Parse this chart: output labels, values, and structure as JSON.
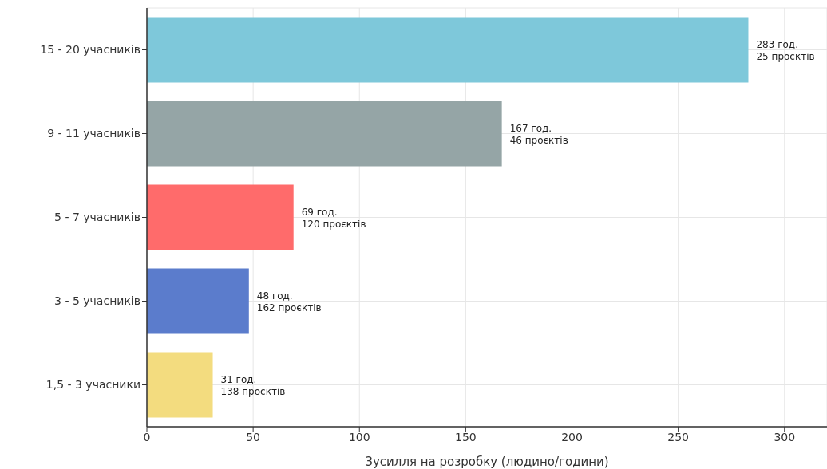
{
  "chart_data": {
    "type": "bar",
    "orientation": "horizontal",
    "xlabel": "Зусилля на розробку (людино/години)",
    "categories": [
      "15 - 20 учасників",
      "9 - 11 учасників",
      "5 - 7 учасників",
      "3 - 5 учасників",
      "1,5 - 3 учасники"
    ],
    "values": [
      283,
      167,
      69,
      48,
      31
    ],
    "colors": [
      "#7ec8da",
      "#95a5a6",
      "#ff6b6b",
      "#5b7ccc",
      "#f3dc7f"
    ],
    "value_labels": [
      "283 год.\n25 проєктів",
      "167 год.\n46 проєктів",
      "69 год.\n120 проєктів",
      "48 год.\n162 проєктів",
      "31 год.\n138 проєктів"
    ],
    "xlim": [
      0,
      320
    ],
    "xticks": [
      0,
      50,
      100,
      150,
      200,
      250,
      300
    ],
    "grid": true
  }
}
